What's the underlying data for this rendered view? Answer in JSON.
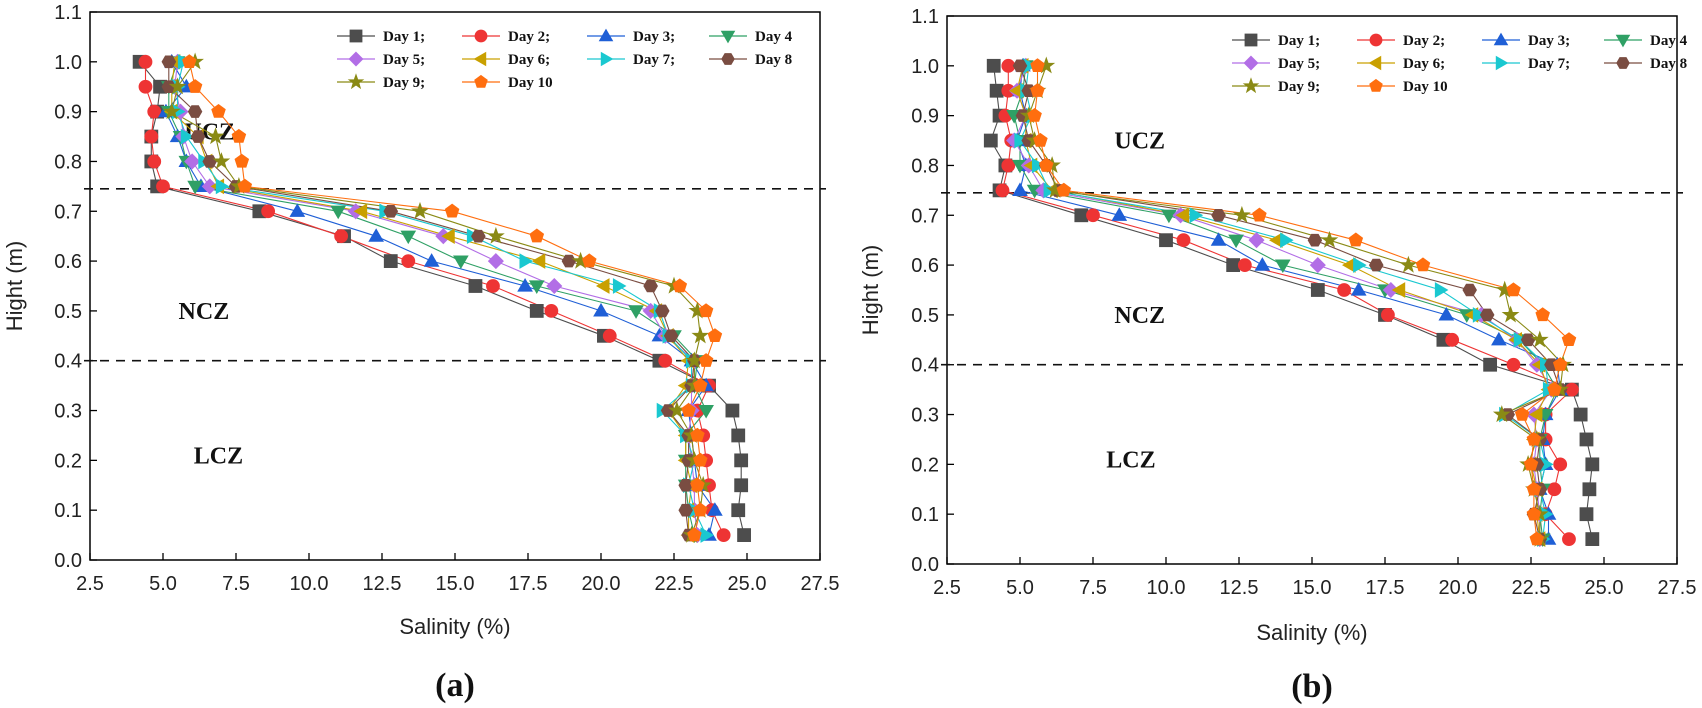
{
  "chart_data": [
    {
      "type": "line",
      "panel_label": "(a)",
      "xlabel": "Salinity (%)",
      "ylabel": "Hight (m)",
      "xlim": [
        2.5,
        27.5
      ],
      "ylim": [
        0.0,
        1.1
      ],
      "xticks": [
        "2.5",
        "5.0",
        "7.5",
        "10.0",
        "12.5",
        "15.0",
        "17.5",
        "20.0",
        "22.5",
        "25.0",
        "27.5"
      ],
      "yticks": [
        "0.0",
        "0.1",
        "0.2",
        "0.3",
        "0.4",
        "0.5",
        "0.6",
        "0.7",
        "0.8",
        "0.9",
        "1.0",
        "1.1"
      ],
      "dashed_lines": [
        0.745,
        0.4
      ],
      "zones": [
        {
          "label": "UCZ",
          "x": 6.6,
          "y": 0.86
        },
        {
          "label": "NCZ",
          "x": 6.4,
          "y": 0.5
        },
        {
          "label": "LCZ",
          "x": 6.9,
          "y": 0.21
        }
      ],
      "y": [
        1.0,
        0.95,
        0.9,
        0.85,
        0.8,
        0.75,
        0.7,
        0.65,
        0.6,
        0.55,
        0.5,
        0.45,
        0.4,
        0.35,
        0.3,
        0.25,
        0.2,
        0.15,
        0.1,
        0.05
      ],
      "series": [
        {
          "name": "Day 1;",
          "values": [
            4.2,
            4.9,
            4.8,
            4.6,
            4.6,
            4.8,
            8.3,
            11.2,
            12.8,
            15.7,
            17.8,
            20.1,
            22.0,
            23.7,
            24.5,
            24.7,
            24.8,
            24.8,
            24.7,
            24.9
          ]
        },
        {
          "name": "Day 2;",
          "values": [
            4.4,
            4.4,
            4.7,
            4.6,
            4.7,
            5.0,
            8.6,
            11.1,
            13.4,
            16.3,
            18.3,
            20.3,
            22.2,
            23.7,
            23.3,
            23.5,
            23.6,
            23.7,
            23.8,
            24.2
          ]
        },
        {
          "name": "Day 3;",
          "values": [
            5.3,
            5.8,
            5.1,
            5.5,
            5.8,
            6.3,
            9.6,
            12.3,
            14.2,
            17.4,
            20.0,
            22.0,
            23.1,
            23.6,
            23.0,
            23.1,
            23.2,
            23.3,
            23.9,
            23.7
          ]
        },
        {
          "name": "Day 4",
          "values": [
            5.5,
            5.2,
            5.2,
            5.6,
            5.8,
            6.1,
            11.0,
            13.4,
            15.2,
            17.8,
            21.2,
            22.5,
            23.3,
            23.2,
            23.6,
            22.9,
            22.9,
            22.9,
            23.0,
            23.2
          ]
        },
        {
          "name": "Day 5;",
          "values": [
            5.5,
            5.4,
            5.6,
            5.7,
            6.0,
            6.6,
            11.6,
            14.6,
            16.4,
            18.4,
            21.7,
            22.2,
            23.2,
            23.1,
            23.1,
            23.0,
            23.1,
            23.2,
            23.2,
            23.3
          ]
        },
        {
          "name": "Day 6;",
          "values": [
            5.4,
            5.3,
            5.3,
            6.2,
            6.5,
            6.9,
            11.8,
            14.8,
            17.9,
            20.1,
            21.9,
            22.3,
            23.0,
            22.9,
            22.3,
            22.9,
            22.9,
            23.1,
            23.0,
            23.0
          ]
        },
        {
          "name": "Day 7;",
          "values": [
            5.7,
            5.5,
            5.5,
            5.8,
            6.4,
            7.0,
            12.6,
            15.6,
            17.4,
            20.6,
            22.0,
            22.3,
            23.1,
            23.1,
            22.1,
            22.9,
            23.2,
            23.0,
            23.2,
            23.6
          ]
        },
        {
          "name": "Day 8",
          "values": [
            5.2,
            5.2,
            6.1,
            6.2,
            6.6,
            7.5,
            12.8,
            15.8,
            18.9,
            21.7,
            22.1,
            22.4,
            23.2,
            23.1,
            22.3,
            23.0,
            23.0,
            22.9,
            22.9,
            23.0
          ]
        },
        {
          "name": "Day 9;",
          "values": [
            6.1,
            5.5,
            5.3,
            6.8,
            7.0,
            7.6,
            13.8,
            16.4,
            19.3,
            22.5,
            23.3,
            23.4,
            23.2,
            23.2,
            22.6,
            23.1,
            23.2,
            23.5,
            23.4,
            23.1
          ]
        },
        {
          "name": "Day 10",
          "values": [
            5.9,
            6.1,
            6.9,
            7.6,
            7.7,
            7.8,
            14.9,
            17.8,
            19.6,
            22.7,
            23.6,
            23.9,
            23.6,
            23.4,
            23.0,
            23.3,
            23.4,
            23.3,
            23.4,
            23.2
          ]
        }
      ]
    },
    {
      "type": "line",
      "panel_label": "(b)",
      "xlabel": "Salinity (%)",
      "ylabel": "Hight (m)",
      "xlim": [
        2.5,
        27.5
      ],
      "ylim": [
        0.0,
        1.1
      ],
      "xticks": [
        "2.5",
        "5.0",
        "7.5",
        "10.0",
        "12.5",
        "15.0",
        "17.5",
        "20.0",
        "22.5",
        "25.0",
        "27.5"
      ],
      "yticks": [
        "0.0",
        "0.1",
        "0.2",
        "0.3",
        "0.4",
        "0.5",
        "0.6",
        "0.7",
        "0.8",
        "0.9",
        "1.0",
        "1.1"
      ],
      "dashed_lines": [
        0.745,
        0.4
      ],
      "zones": [
        {
          "label": "UCZ",
          "x": 9.1,
          "y": 0.85
        },
        {
          "label": "NCZ",
          "x": 9.1,
          "y": 0.5
        },
        {
          "label": "LCZ",
          "x": 8.8,
          "y": 0.21
        }
      ],
      "y": [
        1.0,
        0.95,
        0.9,
        0.85,
        0.8,
        0.75,
        0.7,
        0.65,
        0.6,
        0.55,
        0.5,
        0.45,
        0.4,
        0.35,
        0.3,
        0.25,
        0.2,
        0.15,
        0.1,
        0.05
      ],
      "series": [
        {
          "name": "Day 1;",
          "values": [
            4.1,
            4.2,
            4.3,
            4.0,
            4.5,
            4.3,
            7.1,
            10.0,
            12.3,
            15.2,
            17.5,
            19.5,
            21.1,
            23.9,
            24.2,
            24.4,
            24.6,
            24.5,
            24.4,
            24.6
          ]
        },
        {
          "name": "Day 2;",
          "values": [
            4.6,
            4.6,
            4.5,
            4.7,
            4.6,
            4.4,
            7.5,
            10.6,
            12.7,
            16.1,
            17.6,
            19.8,
            21.9,
            23.9,
            23.0,
            23.0,
            23.5,
            23.3,
            23.0,
            23.8
          ]
        },
        {
          "name": "Day 3;",
          "values": [
            5.1,
            5.0,
            5.2,
            4.9,
            5.2,
            5.0,
            8.4,
            11.8,
            13.3,
            16.6,
            19.6,
            21.4,
            23.4,
            23.5,
            23.0,
            22.9,
            23.0,
            22.8,
            23.1,
            23.1
          ]
        },
        {
          "name": "Day 4",
          "values": [
            5.2,
            5.1,
            4.8,
            5.0,
            5.0,
            5.5,
            10.1,
            12.4,
            14.0,
            17.5,
            20.3,
            22.1,
            22.9,
            23.4,
            23.0,
            22.8,
            22.8,
            22.9,
            22.8,
            22.9
          ]
        },
        {
          "name": "Day 5;",
          "values": [
            5.2,
            4.9,
            5.2,
            4.8,
            5.3,
            5.8,
            10.5,
            13.1,
            15.2,
            17.7,
            20.8,
            22.0,
            22.7,
            23.2,
            22.6,
            22.7,
            22.6,
            22.7,
            22.8,
            22.8
          ]
        },
        {
          "name": "Day 6;",
          "values": [
            5.1,
            4.9,
            5.2,
            5.2,
            5.4,
            6.1,
            10.6,
            13.8,
            16.3,
            18.0,
            20.5,
            22.0,
            22.8,
            23.1,
            22.7,
            22.6,
            22.5,
            22.7,
            22.7,
            22.8
          ]
        },
        {
          "name": "Day 7;",
          "values": [
            5.3,
            5.2,
            5.4,
            5.0,
            5.6,
            6.0,
            11.0,
            14.1,
            16.6,
            19.4,
            20.7,
            22.1,
            23.0,
            23.1,
            21.6,
            22.8,
            23.0,
            22.8,
            23.0,
            22.9
          ]
        },
        {
          "name": "Day 8",
          "values": [
            5.0,
            5.3,
            5.1,
            5.3,
            5.9,
            6.3,
            11.8,
            15.1,
            17.2,
            20.4,
            21.0,
            22.4,
            23.2,
            23.5,
            21.7,
            22.8,
            22.7,
            22.8,
            22.6,
            22.8
          ]
        },
        {
          "name": "Day 9;",
          "values": [
            5.9,
            5.6,
            5.3,
            5.5,
            6.1,
            6.2,
            12.6,
            15.6,
            18.3,
            21.6,
            21.8,
            22.8,
            23.6,
            23.5,
            21.5,
            22.7,
            22.4,
            22.6,
            22.8,
            22.8
          ]
        },
        {
          "name": "Day 10",
          "values": [
            5.6,
            5.6,
            5.5,
            5.7,
            5.9,
            6.5,
            13.2,
            16.5,
            18.8,
            21.9,
            22.9,
            23.8,
            23.5,
            23.3,
            22.2,
            22.6,
            22.5,
            22.6,
            22.6,
            22.7
          ]
        }
      ]
    }
  ],
  "legend": [
    {
      "label": "Day 1;",
      "marker": "square",
      "color": "#4d4d4d"
    },
    {
      "label": "Day 2;",
      "marker": "circle",
      "color": "#ee3434"
    },
    {
      "label": "Day 3;",
      "marker": "triangle-up",
      "color": "#1f5fd6"
    },
    {
      "label": "Day 4",
      "marker": "triangle-down",
      "color": "#2fa065"
    },
    {
      "label": "Day 5;",
      "marker": "diamond",
      "color": "#b26ee6"
    },
    {
      "label": "Day 6;",
      "marker": "triangle-left",
      "color": "#c9a000"
    },
    {
      "label": "Day 7;",
      "marker": "triangle-right",
      "color": "#1ac8d0"
    },
    {
      "label": "Day 8",
      "marker": "hexagon",
      "color": "#7a4d42"
    },
    {
      "label": "Day 9;",
      "marker": "star",
      "color": "#8a8a15"
    },
    {
      "label": "Day 10",
      "marker": "pentagon",
      "color": "#ff6e0f"
    }
  ]
}
